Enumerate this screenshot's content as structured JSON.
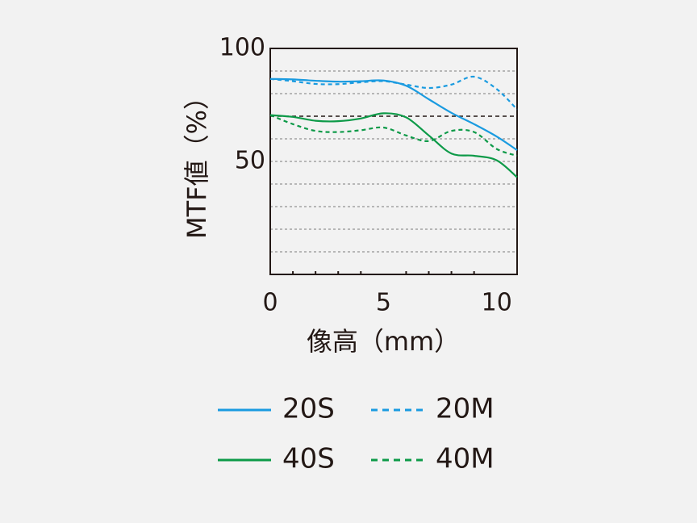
{
  "chart_data": {
    "type": "line",
    "xlabel": "像高（mm）",
    "ylabel": "MTF値（%）",
    "x": [
      0,
      1,
      2,
      3,
      4,
      5,
      6,
      7,
      8,
      9,
      10,
      10.9
    ],
    "series": [
      {
        "name": "20S",
        "color": "#1a9be0",
        "dash": false,
        "values": [
          86.5,
          86.3,
          85.7,
          85.3,
          85.5,
          85.8,
          83.5,
          77.5,
          71.5,
          66.5,
          61,
          55
        ]
      },
      {
        "name": "20M",
        "color": "#1a9be0",
        "dash": true,
        "values": [
          86.5,
          85.5,
          84.3,
          84.2,
          85,
          85.5,
          84,
          82.5,
          84,
          87.5,
          82,
          73
        ]
      },
      {
        "name": "40S",
        "color": "#0d9a48",
        "dash": false,
        "values": [
          70.5,
          69.7,
          68,
          67.8,
          69,
          71.3,
          69.5,
          61.5,
          53.5,
          52.5,
          50.5,
          43
        ]
      },
      {
        "name": "40M",
        "color": "#0d9a48",
        "dash": true,
        "values": [
          70.5,
          66.5,
          63.5,
          63,
          63.8,
          65,
          61.5,
          59,
          63.5,
          63,
          55.5,
          52.5
        ]
      }
    ],
    "xlim": [
      0,
      10.9
    ],
    "xticks": [
      0,
      5,
      10
    ],
    "xminor": [
      1,
      2,
      3,
      4,
      6,
      7,
      8,
      9
    ],
    "ylim": [
      0,
      100
    ],
    "yticks": [
      50,
      100
    ],
    "ygrid": [
      10,
      20,
      30,
      40,
      50,
      60,
      70,
      80,
      90
    ],
    "ygrid_bold": 70,
    "grid": true
  }
}
